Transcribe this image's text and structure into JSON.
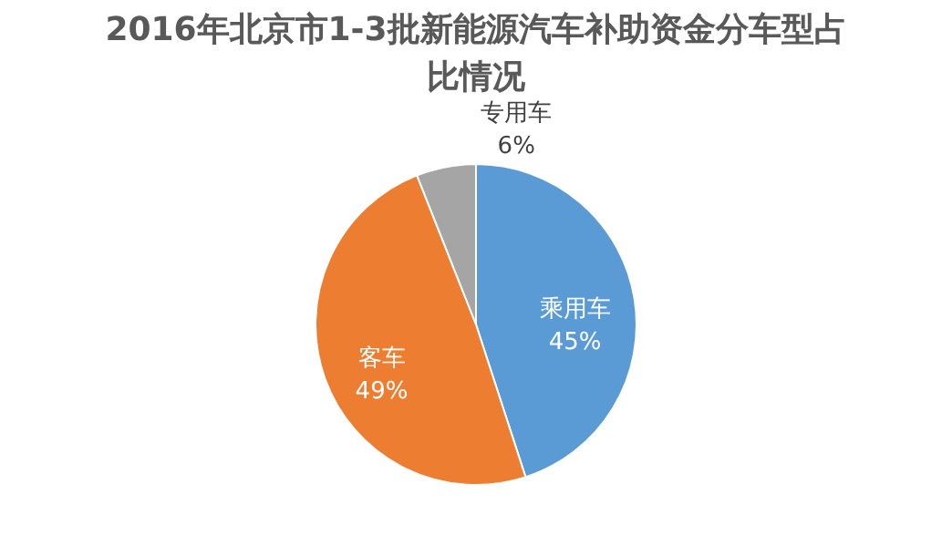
{
  "chart_data": {
    "type": "pie",
    "title": "2016年北京市1-3批新能源汽车补助资金分车型占比情况",
    "categories": [
      "乘用车",
      "客车",
      "专用车"
    ],
    "values": [
      45,
      49,
      6
    ],
    "colors": [
      "#5b9bd5",
      "#ed7d31",
      "#a5a5a5"
    ],
    "value_labels": [
      "45%",
      "49%",
      "6%"
    ],
    "legend": false
  }
}
